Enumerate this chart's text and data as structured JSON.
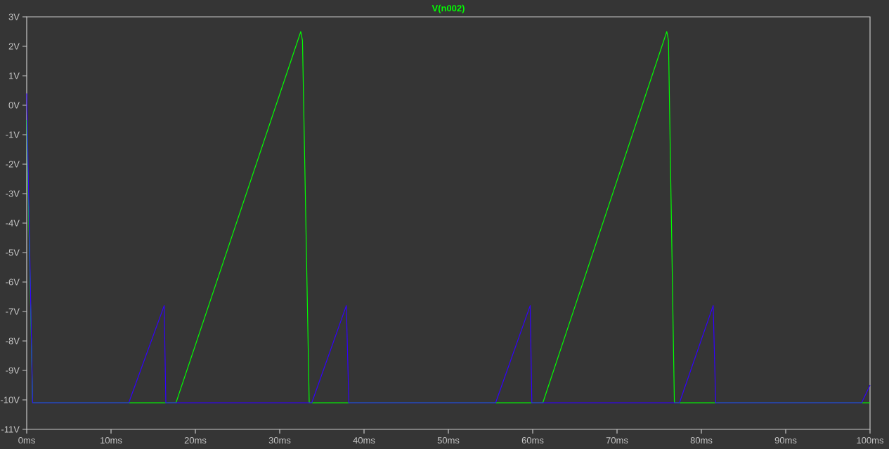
{
  "chart_data": {
    "type": "line",
    "title": "V(n002)",
    "xlim": [
      0,
      100
    ],
    "ylim": [
      -11,
      3
    ],
    "xticks": [
      {
        "value": 0,
        "label": "0ms"
      },
      {
        "value": 10,
        "label": "10ms"
      },
      {
        "value": 20,
        "label": "20ms"
      },
      {
        "value": 30,
        "label": "30ms"
      },
      {
        "value": 40,
        "label": "40ms"
      },
      {
        "value": 50,
        "label": "50ms"
      },
      {
        "value": 60,
        "label": "60ms"
      },
      {
        "value": 70,
        "label": "70ms"
      },
      {
        "value": 80,
        "label": "80ms"
      },
      {
        "value": 90,
        "label": "90ms"
      },
      {
        "value": 100,
        "label": "100ms"
      }
    ],
    "yticks": [
      {
        "value": 3,
        "label": "3V"
      },
      {
        "value": 2,
        "label": "2V"
      },
      {
        "value": 1,
        "label": "1V"
      },
      {
        "value": 0,
        "label": "0V"
      },
      {
        "value": -1,
        "label": "-1V"
      },
      {
        "value": -2,
        "label": "-2V"
      },
      {
        "value": -3,
        "label": "-3V"
      },
      {
        "value": -4,
        "label": "-4V"
      },
      {
        "value": -5,
        "label": "-5V"
      },
      {
        "value": -6,
        "label": "-6V"
      },
      {
        "value": -7,
        "label": "-7V"
      },
      {
        "value": -8,
        "label": "-8V"
      },
      {
        "value": -9,
        "label": "-9V"
      },
      {
        "value": -10,
        "label": "-10V"
      },
      {
        "value": -11,
        "label": "-11V"
      }
    ],
    "grid": false,
    "marker": "none",
    "line_style": "solid",
    "series": [
      {
        "color": "#00ff00",
        "x": [
          0,
          0.7,
          17.7,
          32.5,
          32.7,
          33.5,
          61.2,
          75.9,
          76.1,
          76.8,
          100
        ],
        "values": [
          -0.5,
          -10.1,
          -10.1,
          2.5,
          2.2,
          -10.1,
          -10.1,
          2.5,
          2.2,
          -10.1,
          -10.1
        ]
      },
      {
        "color": "#3300ff",
        "x": [
          0,
          0.7,
          12.1,
          16.3,
          16.5,
          33.8,
          37.9,
          38.2,
          55.6,
          59.7,
          59.9,
          77.4,
          81.4,
          81.7,
          99.0,
          100
        ],
        "values": [
          0.4,
          -10.1,
          -10.1,
          -6.8,
          -10.1,
          -10.1,
          -6.8,
          -10.1,
          -10.1,
          -6.8,
          -10.1,
          -10.1,
          -6.8,
          -10.1,
          -10.1,
          -9.5
        ]
      }
    ]
  }
}
